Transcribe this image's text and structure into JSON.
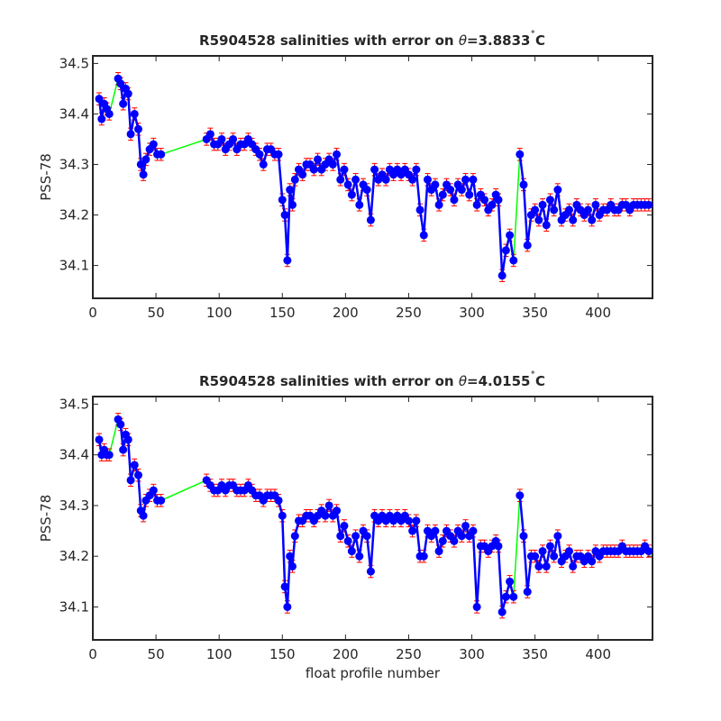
{
  "chart_data": [
    {
      "type": "line",
      "title": "R5904528 salinities with error on θ=3.8833˚C",
      "title_parts": {
        "prefix": "R5904528 salinities with error on ",
        "theta": "θ",
        "value": "=3.8833",
        "degree": "˚",
        "unit": "C"
      },
      "xlabel": "",
      "ylabel": "PSS-78",
      "xlim": [
        0,
        443
      ],
      "ylim": [
        34.035,
        34.515
      ],
      "xticks": [
        0,
        50,
        100,
        150,
        200,
        250,
        300,
        350,
        400
      ],
      "yticks": [
        34.1,
        34.2,
        34.3,
        34.4,
        34.5
      ],
      "ytick_labels": [
        "34.1",
        "34.2",
        "34.3",
        "34.4",
        "34.5"
      ],
      "grid": false,
      "series": [
        {
          "role": "float-profile-salinity",
          "color": "#0000ff",
          "x": [
            5,
            7,
            9,
            11,
            13,
            20,
            22,
            24,
            26,
            28,
            30,
            33,
            36,
            38,
            40,
            42,
            45,
            48,
            51,
            54,
            90,
            93,
            96,
            99,
            102,
            105,
            108,
            111,
            114,
            117,
            120,
            123,
            126,
            129,
            132,
            135,
            138,
            141,
            144,
            147,
            150,
            152,
            154,
            156,
            158,
            160,
            163,
            166,
            169,
            172,
            175,
            178,
            181,
            184,
            187,
            190,
            193,
            196,
            199,
            202,
            205,
            208,
            211,
            214,
            217,
            220,
            223,
            226,
            229,
            232,
            235,
            238,
            241,
            244,
            247,
            250,
            253,
            256,
            259,
            262,
            265,
            268,
            271,
            274,
            277,
            280,
            283,
            286,
            289,
            292,
            295,
            298,
            301,
            304,
            307,
            310,
            313,
            316,
            319,
            321,
            324,
            327,
            330,
            333,
            338,
            341,
            344,
            347,
            350,
            353,
            356,
            359,
            362,
            365,
            368,
            371,
            374,
            377,
            380,
            383,
            386,
            389,
            392,
            395,
            398,
            401,
            404,
            407,
            410,
            413,
            416,
            419,
            422,
            425,
            428,
            431,
            434,
            437,
            440
          ],
          "y": [
            34.43,
            34.39,
            34.42,
            34.41,
            34.4,
            34.47,
            34.46,
            34.42,
            34.45,
            34.44,
            34.36,
            34.4,
            34.37,
            34.3,
            34.28,
            34.31,
            34.33,
            34.34,
            34.32,
            34.32,
            34.35,
            34.36,
            34.34,
            34.34,
            34.35,
            34.33,
            34.34,
            34.35,
            34.33,
            34.34,
            34.34,
            34.35,
            34.34,
            34.33,
            34.32,
            34.3,
            34.33,
            34.33,
            34.32,
            34.32,
            34.23,
            34.2,
            34.11,
            34.25,
            34.22,
            34.27,
            34.29,
            34.28,
            34.3,
            34.3,
            34.29,
            34.31,
            34.29,
            34.3,
            34.31,
            34.3,
            34.32,
            34.27,
            34.29,
            34.26,
            34.24,
            34.27,
            34.22,
            34.26,
            34.25,
            34.19,
            34.29,
            34.27,
            34.28,
            34.27,
            34.29,
            34.28,
            34.29,
            34.28,
            34.29,
            34.28,
            34.27,
            34.29,
            34.21,
            34.16,
            34.27,
            34.25,
            34.26,
            34.22,
            34.24,
            34.26,
            34.25,
            34.23,
            34.26,
            34.25,
            34.27,
            34.24,
            34.27,
            34.22,
            34.24,
            34.23,
            34.21,
            34.22,
            34.24,
            34.23,
            34.08,
            34.13,
            34.16,
            34.11,
            34.32,
            34.26,
            34.14,
            34.2,
            34.21,
            34.19,
            34.22,
            34.18,
            34.23,
            34.21,
            34.25,
            34.19,
            34.2,
            34.21,
            34.19,
            34.22,
            34.21,
            34.2,
            34.21,
            34.19,
            34.22,
            34.2,
            34.21,
            34.21,
            34.22,
            34.21,
            34.21,
            34.22,
            34.22,
            34.21,
            34.22,
            34.22,
            34.22,
            34.22,
            34.22
          ],
          "error": 0.012,
          "error_color": "#ff0000",
          "gap_color": "#00ff00"
        }
      ]
    },
    {
      "type": "line",
      "title": "R5904528 salinities with error on θ=4.0155˚C",
      "title_parts": {
        "prefix": "R5904528 salinities with error on ",
        "theta": "θ",
        "value": "=4.0155",
        "degree": "˚",
        "unit": "C"
      },
      "xlabel": "float profile number",
      "ylabel": "PSS-78",
      "xlim": [
        0,
        443
      ],
      "ylim": [
        34.035,
        34.515
      ],
      "xticks": [
        0,
        50,
        100,
        150,
        200,
        250,
        300,
        350,
        400
      ],
      "yticks": [
        34.1,
        34.2,
        34.3,
        34.4,
        34.5
      ],
      "ytick_labels": [
        "34.1",
        "34.2",
        "34.3",
        "34.4",
        "34.5"
      ],
      "grid": false,
      "series": [
        {
          "role": "float-profile-salinity",
          "color": "#0000ff",
          "x": [
            5,
            7,
            9,
            11,
            13,
            20,
            22,
            24,
            26,
            28,
            30,
            33,
            36,
            38,
            40,
            42,
            45,
            48,
            51,
            54,
            90,
            93,
            96,
            99,
            102,
            105,
            108,
            111,
            114,
            117,
            120,
            123,
            126,
            129,
            132,
            135,
            138,
            141,
            144,
            147,
            150,
            152,
            154,
            156,
            158,
            160,
            163,
            166,
            169,
            172,
            175,
            178,
            181,
            184,
            187,
            190,
            193,
            196,
            199,
            202,
            205,
            208,
            211,
            214,
            217,
            220,
            223,
            226,
            229,
            232,
            235,
            238,
            241,
            244,
            247,
            250,
            253,
            256,
            259,
            262,
            265,
            268,
            271,
            274,
            277,
            280,
            283,
            286,
            289,
            292,
            295,
            298,
            301,
            304,
            307,
            310,
            313,
            316,
            319,
            321,
            324,
            327,
            330,
            333,
            338,
            341,
            344,
            347,
            350,
            353,
            356,
            359,
            362,
            365,
            368,
            371,
            374,
            377,
            380,
            383,
            386,
            389,
            392,
            395,
            398,
            401,
            404,
            407,
            410,
            413,
            416,
            419,
            422,
            425,
            428,
            431,
            434,
            437,
            440
          ],
          "y": [
            34.43,
            34.4,
            34.41,
            34.4,
            34.4,
            34.47,
            34.46,
            34.41,
            34.44,
            34.43,
            34.35,
            34.38,
            34.36,
            34.29,
            34.28,
            34.31,
            34.32,
            34.33,
            34.31,
            34.31,
            34.35,
            34.34,
            34.33,
            34.33,
            34.34,
            34.33,
            34.34,
            34.34,
            34.33,
            34.33,
            34.33,
            34.34,
            34.33,
            34.32,
            34.32,
            34.31,
            34.32,
            34.32,
            34.32,
            34.31,
            34.28,
            34.14,
            34.1,
            34.2,
            34.18,
            34.24,
            34.27,
            34.27,
            34.28,
            34.28,
            34.27,
            34.28,
            34.29,
            34.28,
            34.3,
            34.28,
            34.29,
            34.24,
            34.26,
            34.23,
            34.21,
            34.24,
            34.2,
            34.25,
            34.24,
            34.17,
            34.28,
            34.27,
            34.28,
            34.27,
            34.28,
            34.27,
            34.28,
            34.27,
            34.28,
            34.27,
            34.25,
            34.27,
            34.2,
            34.2,
            34.25,
            34.24,
            34.25,
            34.21,
            34.23,
            34.25,
            34.24,
            34.23,
            34.25,
            34.24,
            34.26,
            34.24,
            34.25,
            34.1,
            34.22,
            34.22,
            34.21,
            34.22,
            34.23,
            34.22,
            34.09,
            34.12,
            34.15,
            34.12,
            34.32,
            34.24,
            34.13,
            34.2,
            34.2,
            34.18,
            34.21,
            34.18,
            34.22,
            34.2,
            34.24,
            34.19,
            34.2,
            34.21,
            34.18,
            34.2,
            34.2,
            34.19,
            34.2,
            34.19,
            34.21,
            34.2,
            34.21,
            34.21,
            34.21,
            34.21,
            34.21,
            34.22,
            34.21,
            34.21,
            34.21,
            34.21,
            34.21,
            34.22,
            34.21
          ],
          "error": 0.012,
          "error_color": "#ff0000",
          "gap_color": "#00ff00"
        }
      ]
    }
  ]
}
